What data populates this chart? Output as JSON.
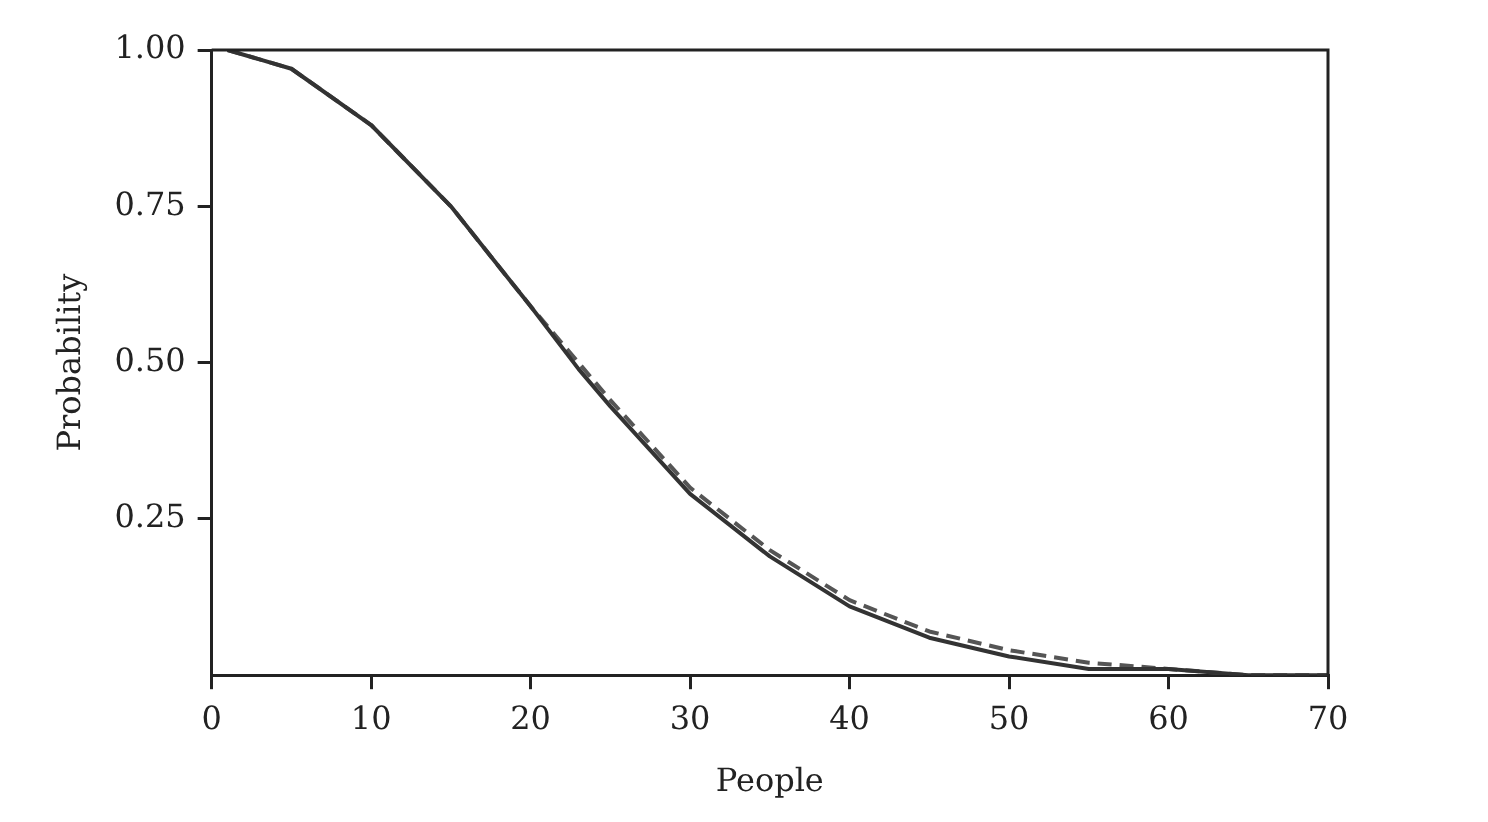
{
  "chart_data": {
    "type": "line",
    "xlabel": "People",
    "ylabel": "Probability",
    "xlim": [
      0,
      70
    ],
    "ylim": [
      0,
      1
    ],
    "xticks": [
      0,
      10,
      20,
      30,
      40,
      50,
      60,
      70
    ],
    "yticks": [
      {
        "value": 0.25,
        "label": "0.25"
      },
      {
        "value": 0.5,
        "label": "0.50"
      },
      {
        "value": 0.75,
        "label": "0.75"
      },
      {
        "value": 1,
        "label": "1.00"
      }
    ],
    "grid": false,
    "legend": false,
    "marker": "none",
    "series": [
      {
        "color": "#333333",
        "line_style": "solid",
        "x": [
          1,
          5,
          10,
          15,
          20,
          23,
          25,
          30,
          35,
          40,
          45,
          50,
          55,
          60,
          65,
          70
        ],
        "values": [
          1,
          0.97,
          0.88,
          0.75,
          0.59,
          0.49,
          0.43,
          0.29,
          0.19,
          0.11,
          0.06,
          0.03,
          0.01,
          0.01,
          0,
          0
        ]
      },
      {
        "color": "#555555",
        "line_style": "dashed",
        "x": [
          1,
          5,
          10,
          15,
          20,
          25,
          30,
          35,
          40,
          45,
          50,
          55,
          60,
          65,
          70
        ],
        "values": [
          1,
          0.97,
          0.88,
          0.75,
          0.59,
          0.44,
          0.3,
          0.2,
          0.12,
          0.07,
          0.04,
          0.02,
          0.01,
          0,
          0
        ]
      }
    ]
  }
}
